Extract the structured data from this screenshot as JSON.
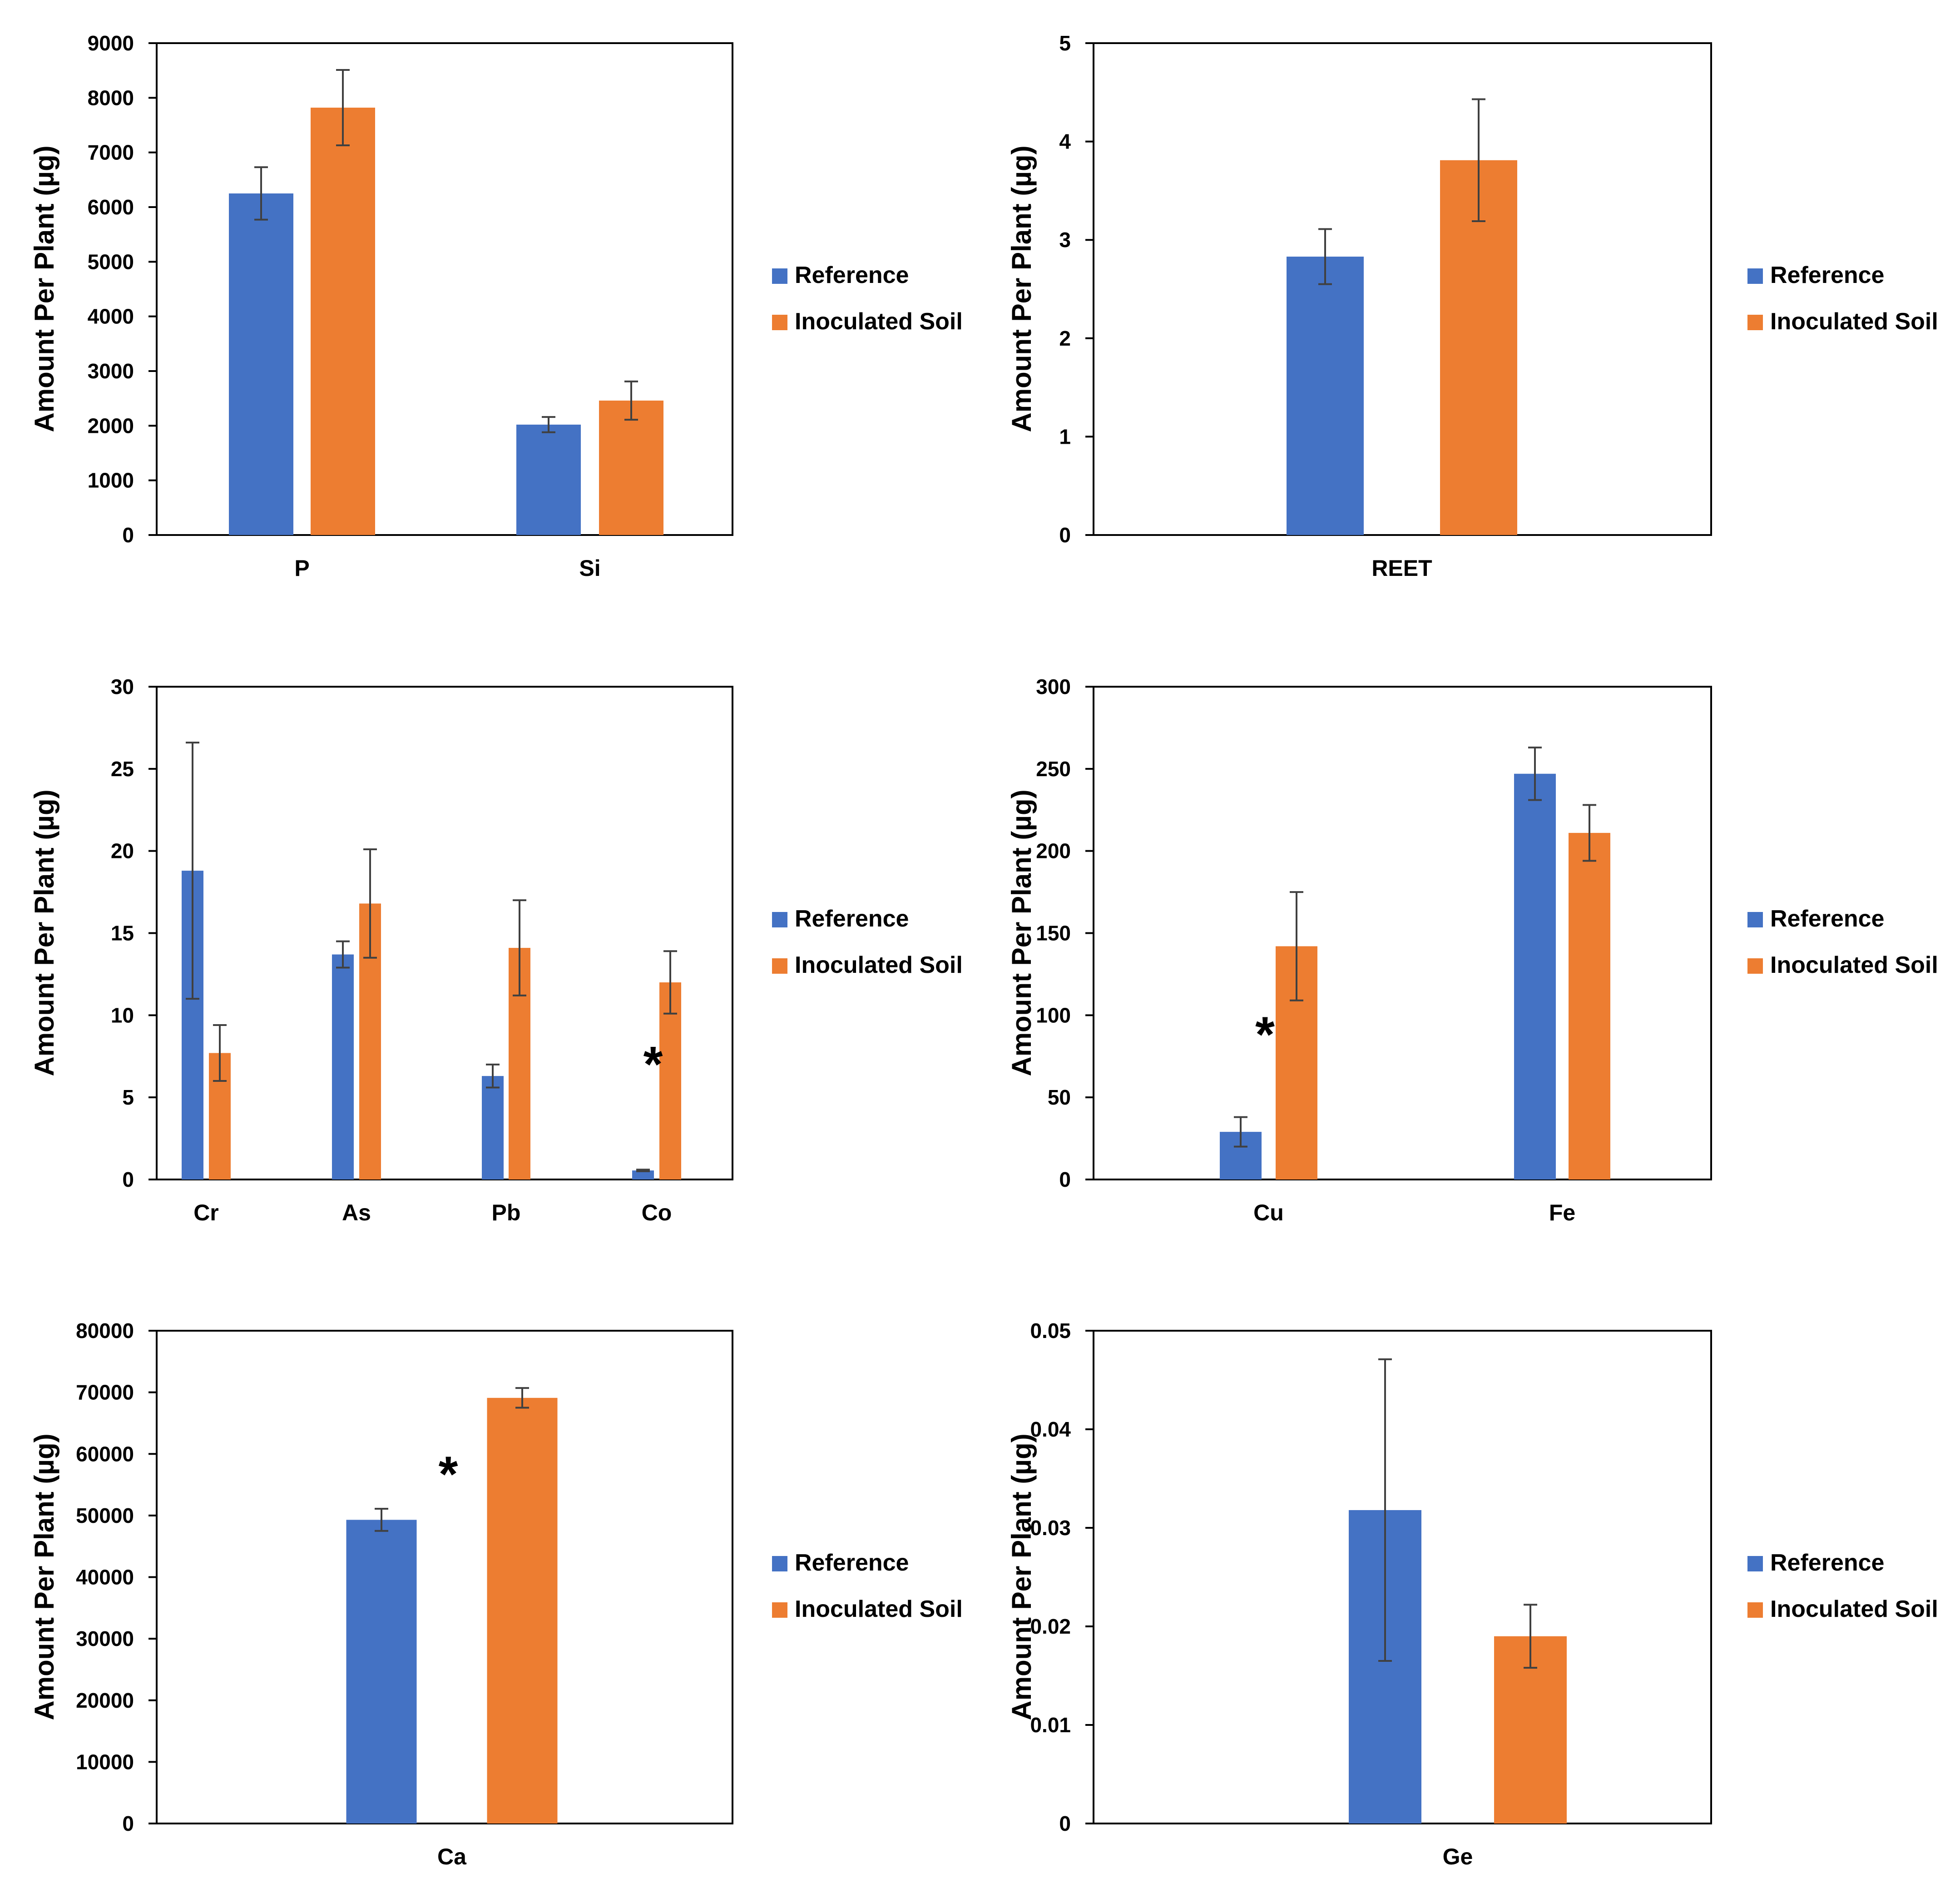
{
  "colors": {
    "reference": "#4472C4",
    "inoculated": "#ED7D31",
    "axis": "#000000",
    "error_bar": "#404040"
  },
  "legend": {
    "reference_label": "Reference",
    "inoculated_label": "Inoculated Soil",
    "placement": "right"
  },
  "chart_data": [
    {
      "id": "chart1",
      "type": "bar",
      "ylabel": "Amount Per Plant (µg)",
      "ylim": [
        0,
        9000
      ],
      "yticks": [
        "0",
        "1000",
        "2000",
        "3000",
        "4000",
        "5000",
        "6000",
        "7000",
        "8000",
        "9000"
      ],
      "categories": [
        "P",
        "Si"
      ],
      "series": [
        {
          "name": "Reference",
          "values": [
            6250,
            2020
          ],
          "errors": [
            480,
            140
          ]
        },
        {
          "name": "Inoculated Soil",
          "values": [
            7820,
            2460
          ],
          "errors": [
            690,
            350
          ]
        }
      ],
      "annotations": []
    },
    {
      "id": "chart2",
      "type": "bar",
      "ylabel": "Amount Per Plant (µg)",
      "ylim": [
        0,
        5
      ],
      "yticks": [
        "0",
        "1",
        "2",
        "3",
        "4",
        "5"
      ],
      "categories": [
        "REET"
      ],
      "series": [
        {
          "name": "Reference",
          "values": [
            2.83
          ],
          "errors": [
            0.28
          ]
        },
        {
          "name": "Inoculated Soil",
          "values": [
            3.81
          ],
          "errors": [
            0.62
          ]
        }
      ],
      "annotations": []
    },
    {
      "id": "chart3",
      "type": "bar",
      "ylabel": "Amount Per Plant (µg)",
      "ylim": [
        0,
        30
      ],
      "yticks": [
        "0",
        "5",
        "10",
        "15",
        "20",
        "25",
        "30"
      ],
      "categories": [
        "Cr",
        "As",
        "Pb",
        "Co"
      ],
      "series": [
        {
          "name": "Reference",
          "values": [
            18.8,
            13.7,
            6.3,
            0.55
          ],
          "errors": [
            7.8,
            0.8,
            0.7,
            0.05
          ]
        },
        {
          "name": "Inoculated Soil",
          "values": [
            7.7,
            16.8,
            14.1,
            12.0
          ],
          "errors": [
            1.7,
            3.3,
            2.9,
            1.9
          ]
        }
      ],
      "annotations": [
        {
          "text": "*",
          "category": "Co",
          "y": 7.5
        }
      ]
    },
    {
      "id": "chart4",
      "type": "bar",
      "ylabel": "Amount Per Plant (µg)",
      "ylim": [
        0,
        300
      ],
      "yticks": [
        "0",
        "50",
        "100",
        "150",
        "200",
        "250",
        "300"
      ],
      "categories": [
        "Cu",
        "Fe"
      ],
      "series": [
        {
          "name": "Reference",
          "values": [
            29,
            247
          ],
          "errors": [
            9,
            16
          ]
        },
        {
          "name": "Inoculated Soil",
          "values": [
            142,
            211
          ],
          "errors": [
            33,
            17
          ]
        }
      ],
      "annotations": [
        {
          "text": "*",
          "category": "Cu",
          "y": 93
        }
      ]
    },
    {
      "id": "chart5",
      "type": "bar",
      "ylabel": "Amount Per Plant (µg)",
      "ylim": [
        0,
        80000
      ],
      "yticks": [
        "0",
        "10000",
        "20000",
        "30000",
        "40000",
        "50000",
        "60000",
        "70000",
        "80000"
      ],
      "categories": [
        "Ca"
      ],
      "series": [
        {
          "name": "Reference",
          "values": [
            49300
          ],
          "errors": [
            1800
          ]
        },
        {
          "name": "Inoculated Soil",
          "values": [
            69100
          ],
          "errors": [
            1600
          ]
        }
      ],
      "annotations": [
        {
          "text": "*",
          "category": "Ca",
          "y": 58000
        }
      ]
    },
    {
      "id": "chart6",
      "type": "bar",
      "ylabel": "Amount Per Plant (µg)",
      "ylim": [
        0,
        0.05
      ],
      "yticks": [
        "0",
        "0.01",
        "0.02",
        "0.03",
        "0.04",
        "0.05"
      ],
      "categories": [
        "Ge"
      ],
      "series": [
        {
          "name": "Reference",
          "values": [
            0.0318
          ],
          "errors": [
            0.0153
          ]
        },
        {
          "name": "Inoculated Soil",
          "values": [
            0.019
          ],
          "errors": [
            0.0032
          ]
        }
      ],
      "annotations": []
    }
  ]
}
